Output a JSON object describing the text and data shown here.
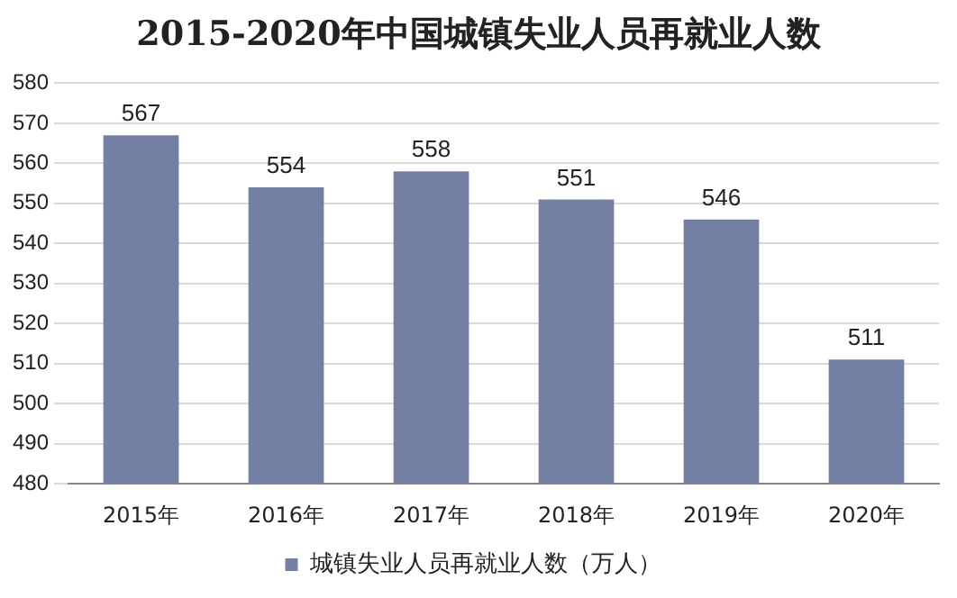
{
  "chart_data": {
    "type": "bar",
    "title": "2015-2020年中国城镇失业人员再就业人数",
    "categories": [
      "2015年",
      "2016年",
      "2017年",
      "2018年",
      "2019年",
      "2020年"
    ],
    "series": [
      {
        "name": "城镇失业人员再就业人数（万人）",
        "color": "#737fa3",
        "values": [
          567,
          554,
          558,
          551,
          546,
          511
        ]
      }
    ],
    "ylim": [
      480,
      580
    ],
    "yticks": [
      480,
      490,
      500,
      510,
      520,
      530,
      540,
      550,
      560,
      570,
      580
    ],
    "grid": "y",
    "legend": "bottom",
    "data_labels": true
  }
}
